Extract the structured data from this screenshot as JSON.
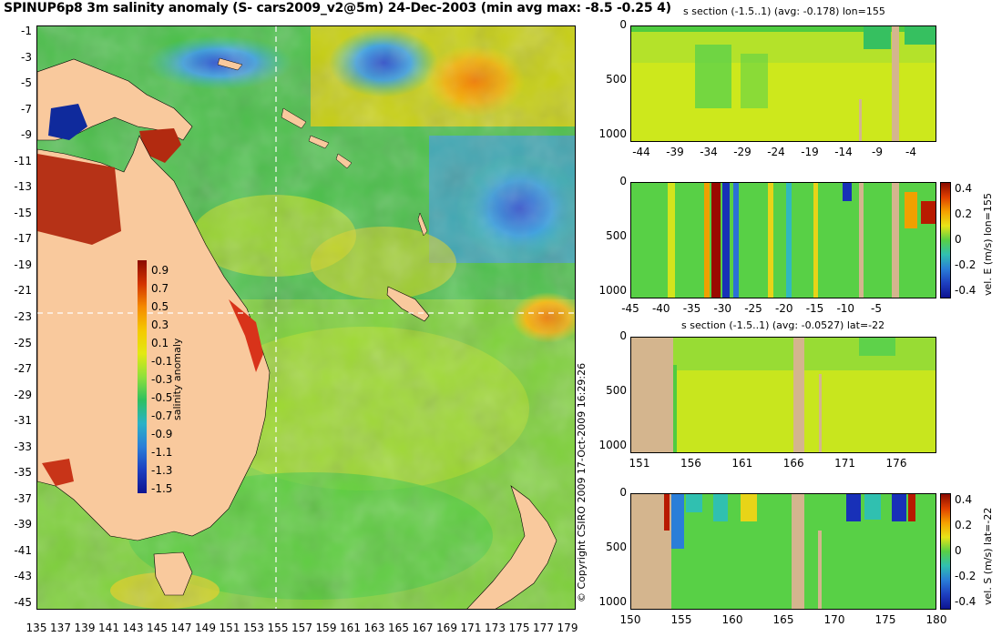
{
  "title": "SPINUP6p8 3m salinity anomaly (S- cars2009_v2@5m) 24-Dec-2003 (min avg max: -8.5 -0.25 4)",
  "map": {
    "lat_ticks": [
      "-1",
      "-3",
      "-5",
      "-7",
      "-9",
      "-11",
      "-13",
      "-15",
      "-17",
      "-19",
      "-21",
      "-23",
      "-25",
      "-27",
      "-29",
      "-31",
      "-33",
      "-35",
      "-37",
      "-39",
      "-41",
      "-43",
      "-45"
    ],
    "lon_ticks": [
      "135",
      "137",
      "139",
      "141",
      "143",
      "145",
      "147",
      "149",
      "151",
      "153",
      "155",
      "157",
      "159",
      "161",
      "163",
      "165",
      "167",
      "169",
      "171",
      "173",
      "175",
      "177",
      "179"
    ],
    "colorbar": {
      "label": "salinity anomaly",
      "ticks": [
        "0.9",
        "0.7",
        "0.5",
        "0.3",
        "0.1",
        "-0.1",
        "-0.3",
        "-0.5",
        "-0.7",
        "-0.9",
        "-1.1",
        "-1.3",
        "-1.5"
      ]
    },
    "copyright": "© Copyright CSIRO 2009   17-Oct-2009 16:29:26"
  },
  "sections": [
    {
      "title": "s section (-1.5..1) (avg: -0.178) lon=155",
      "x_ticks": [
        "-44",
        "-39",
        "-34",
        "-29",
        "-24",
        "-19",
        "-14",
        "-9",
        "-4"
      ],
      "y_ticks": [
        "0",
        "500",
        "1000"
      ],
      "colorbar": null
    },
    {
      "title": "",
      "x_ticks": [
        "-45",
        "-40",
        "-35",
        "-30",
        "-25",
        "-20",
        "-15",
        "-10",
        "-5"
      ],
      "y_ticks": [
        "0",
        "500",
        "1000"
      ],
      "colorbar": {
        "label": "vel. E (m/s) lon=155",
        "ticks": [
          "0.4",
          "0.2",
          "0",
          "-0.2",
          "-0.4"
        ]
      }
    },
    {
      "title": "s section (-1.5..1) (avg: -0.0527) lat=-22",
      "x_ticks": [
        "151",
        "156",
        "161",
        "166",
        "171",
        "176"
      ],
      "y_ticks": [
        "0",
        "500",
        "1000"
      ],
      "colorbar": null
    },
    {
      "title": "",
      "x_ticks": [
        "150",
        "155",
        "160",
        "165",
        "170",
        "175",
        "180"
      ],
      "y_ticks": [
        "0",
        "500",
        "1000"
      ],
      "colorbar": {
        "label": "vel. S (m/s) lat=-22",
        "ticks": [
          "0.4",
          "0.2",
          "0",
          "-0.2",
          "-0.4"
        ]
      }
    }
  ]
}
